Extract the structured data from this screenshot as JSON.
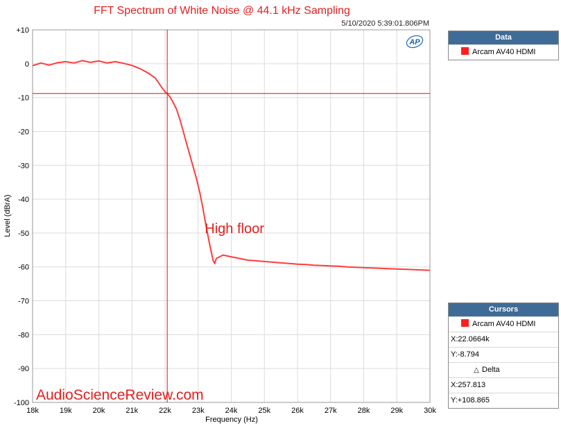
{
  "colors": {
    "trace": "#ff3b3b",
    "cursor": "#d41414",
    "title": "#e41e1e",
    "grid": "#dcdcdc",
    "panel_header": "#3f6c97"
  },
  "chart_data": {
    "type": "line",
    "title": "FFT Spectrum of White Noise @ 44.1 kHz Sampling",
    "timestamp": "5/10/2020 5:39:01.806PM",
    "xlabel": "Frequency (Hz)",
    "ylabel": "Level (dBrA)",
    "xlim": [
      18000,
      30000
    ],
    "ylim": [
      -100,
      10
    ],
    "grid": true,
    "x_ticks": [
      18000,
      19000,
      20000,
      21000,
      22000,
      23000,
      24000,
      25000,
      26000,
      27000,
      28000,
      29000,
      30000
    ],
    "x_tick_labels": [
      "18k",
      "19k",
      "20k",
      "21k",
      "22k",
      "23k",
      "24k",
      "25k",
      "26k",
      "27k",
      "28k",
      "29k",
      "30k"
    ],
    "y_ticks": [
      10,
      0,
      -10,
      -20,
      -30,
      -40,
      -50,
      -60,
      -70,
      -80,
      -90,
      -100
    ],
    "y_tick_labels": [
      "+10",
      "0",
      "-10",
      "-20",
      "-30",
      "-40",
      "-50",
      "-60",
      "-70",
      "-80",
      "-90",
      "-100"
    ],
    "series": [
      {
        "name": "Arcam AV40 HDMI",
        "color": "#ff3b3b",
        "x": [
          18000,
          18250,
          18500,
          18750,
          19000,
          19250,
          19500,
          19750,
          20000,
          20250,
          20500,
          20750,
          21000,
          21250,
          21500,
          21600,
          21700,
          21800,
          21900,
          22000,
          22066,
          22150,
          22250,
          22350,
          22450,
          22550,
          22650,
          22750,
          22850,
          22950,
          23050,
          23150,
          23250,
          23350,
          23450,
          23500,
          23550,
          23750,
          24000,
          24250,
          24500,
          24750,
          25000,
          25250,
          25500,
          25750,
          26000,
          26250,
          26500,
          26750,
          27000,
          27250,
          27500,
          27750,
          28000,
          28250,
          28500,
          28750,
          29000,
          29250,
          29500,
          29750,
          30000
        ],
        "y": [
          -0.6,
          0.2,
          -0.4,
          0.3,
          0.6,
          0.2,
          0.9,
          0.4,
          0.8,
          0.2,
          0.6,
          0.1,
          -0.5,
          -1.5,
          -2.8,
          -3.5,
          -4.2,
          -5.5,
          -7.0,
          -8.3,
          -8.8,
          -9.8,
          -11.5,
          -13.5,
          -16.5,
          -20.0,
          -23.5,
          -27.0,
          -30.5,
          -34.0,
          -38.0,
          -43.0,
          -48.5,
          -53.5,
          -58.0,
          -59.0,
          -57.5,
          -56.5,
          -57.0,
          -57.5,
          -58.0,
          -58.2,
          -58.4,
          -58.6,
          -58.8,
          -59.0,
          -59.2,
          -59.3,
          -59.5,
          -59.6,
          -59.7,
          -59.8,
          -60.0,
          -60.1,
          -60.2,
          -60.3,
          -60.4,
          -60.5,
          -60.6,
          -60.7,
          -60.8,
          -60.9,
          -61.0
        ]
      }
    ],
    "cursor": {
      "x": 22066.4,
      "y": -8.794
    },
    "annotation": {
      "text": "High floor",
      "x": 23200,
      "y": -50
    },
    "watermark": "AudioScienceReview.com",
    "logo_text": "AP"
  },
  "data_panel": {
    "title": "Data",
    "legend_label": "Arcam AV40 HDMI"
  },
  "cursors_panel": {
    "title": "Cursors",
    "legend_label": "Arcam AV40 HDMI",
    "x_readout": "X:22.0664k",
    "y_readout": "Y:-8.794",
    "delta_label": "Delta",
    "delta_x_readout": "X:257.813",
    "delta_y_readout": "Y:+108.865"
  }
}
